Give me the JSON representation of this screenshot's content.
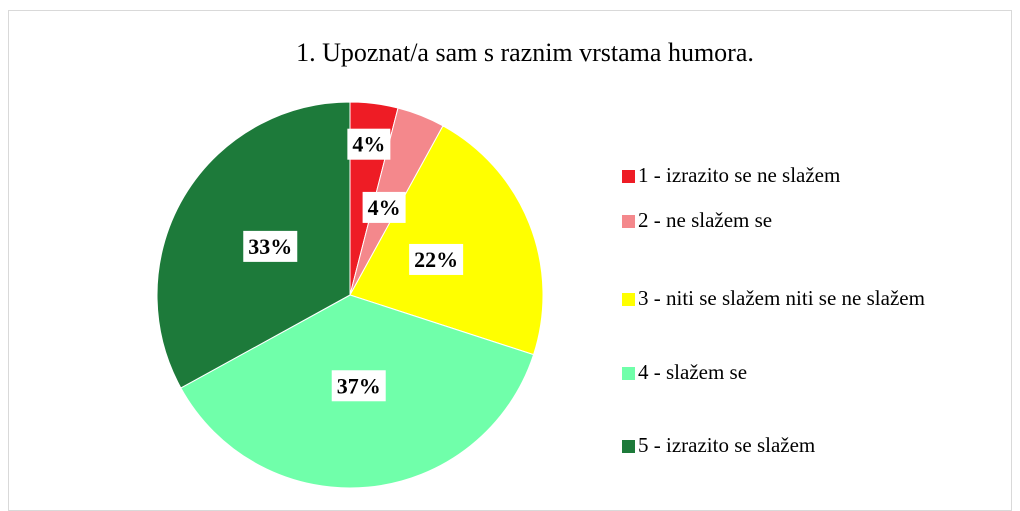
{
  "chart_data": {
    "type": "pie",
    "title": "1. Upoznat/a sam s raznim vrstama humora.",
    "categories": [
      "1 - izrazito se ne slažem",
      "2 - ne slažem se",
      "3 - niti se slažem niti se ne slažem",
      "4 - slažem se",
      "5 - izrazito se slažem"
    ],
    "values": [
      4,
      4,
      22,
      37,
      33
    ],
    "value_labels": [
      "4%",
      "4%",
      "22%",
      "37%",
      "33%"
    ],
    "colors": [
      "#ee1c25",
      "#f4888c",
      "#ffff00",
      "#70ffaa",
      "#1d7a3a"
    ],
    "legend": "right"
  }
}
